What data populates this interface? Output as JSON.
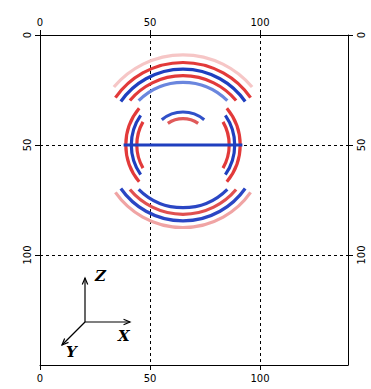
{
  "chart_data": {
    "type": "wavefield",
    "xlim": [
      0,
      140
    ],
    "ylim": [
      0,
      150
    ],
    "xticks": [
      0,
      50,
      100
    ],
    "yticks": [
      0,
      50,
      100
    ],
    "grid": true,
    "source": [
      65,
      50
    ],
    "wavefronts": [
      {
        "radius": 41,
        "angles": [
          40,
          140
        ],
        "color": "#f6c6c6"
      },
      {
        "radius": 37.5,
        "angles": [
          35,
          145
        ],
        "color": "#e23a3a"
      },
      {
        "radius": 34.5,
        "angles": [
          35,
          145
        ],
        "color": "#1f3fbf"
      },
      {
        "radius": 31.5,
        "angles": [
          40,
          140
        ],
        "color": "#e23a3a"
      },
      {
        "radius": 28.5,
        "angles": [
          45,
          135
        ],
        "color": "#6a86de"
      },
      {
        "radius": 15,
        "angles": [
          50,
          130
        ],
        "color": "#3050c8"
      },
      {
        "radius": 12,
        "angles": [
          55,
          125
        ],
        "color": "#e05a5a"
      },
      {
        "radius": 26,
        "angles": [
          -40,
          40
        ],
        "color": "#e23a3a"
      },
      {
        "radius": 23.5,
        "angles": [
          -35,
          35
        ],
        "color": "#1f3fbf"
      },
      {
        "radius": 21,
        "angles": [
          -30,
          30
        ],
        "color": "#e23a3a"
      },
      {
        "radius": 26,
        "angles": [
          140,
          220
        ],
        "color": "#e23a3a"
      },
      {
        "radius": 23.5,
        "angles": [
          145,
          215
        ],
        "color": "#1f3fbf"
      },
      {
        "radius": 21,
        "angles": [
          150,
          210
        ],
        "color": "#e23a3a"
      },
      {
        "radius": 28.5,
        "angles": [
          225,
          315
        ],
        "color": "#2a46c4"
      },
      {
        "radius": 31.5,
        "angles": [
          220,
          320
        ],
        "color": "#e05050"
      },
      {
        "radius": 34.5,
        "angles": [
          215,
          325
        ],
        "color": "#2a46c4"
      },
      {
        "radius": 37.5,
        "angles": [
          215,
          325
        ],
        "color": "#f0a4a4"
      }
    ],
    "segments": [
      {
        "from": [
          38,
          50
        ],
        "to": [
          92,
          50
        ],
        "color": "#1f3fbf"
      }
    ],
    "axis_labels": {
      "z": "Z",
      "x": "X",
      "y": "Y"
    }
  }
}
